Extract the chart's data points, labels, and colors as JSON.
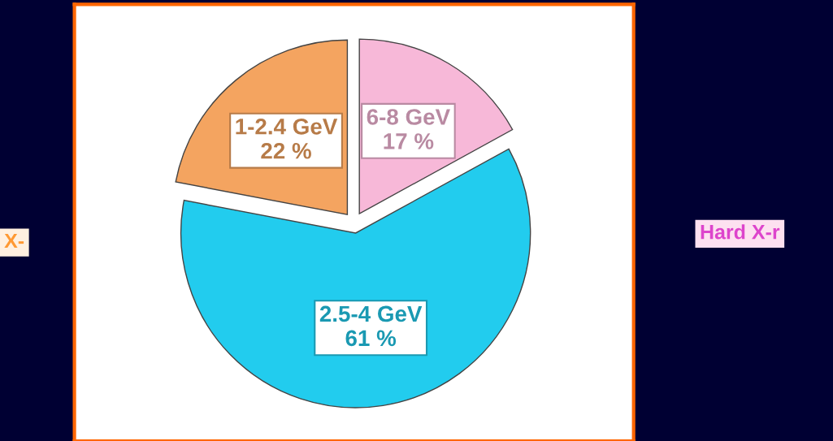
{
  "chart_data": {
    "type": "pie",
    "categories": [
      "1-2.4 GeV",
      "6-8 GeV",
      "2.5-4 GeV"
    ],
    "values": [
      22,
      17,
      61
    ],
    "value_labels": [
      "22 %",
      "17 %",
      "61 %"
    ],
    "colors": [
      "#f4a460",
      "#f7b8d8",
      "#22ccee"
    ],
    "annotations": [
      "X-",
      "Hard X-r"
    ],
    "legend": false
  }
}
